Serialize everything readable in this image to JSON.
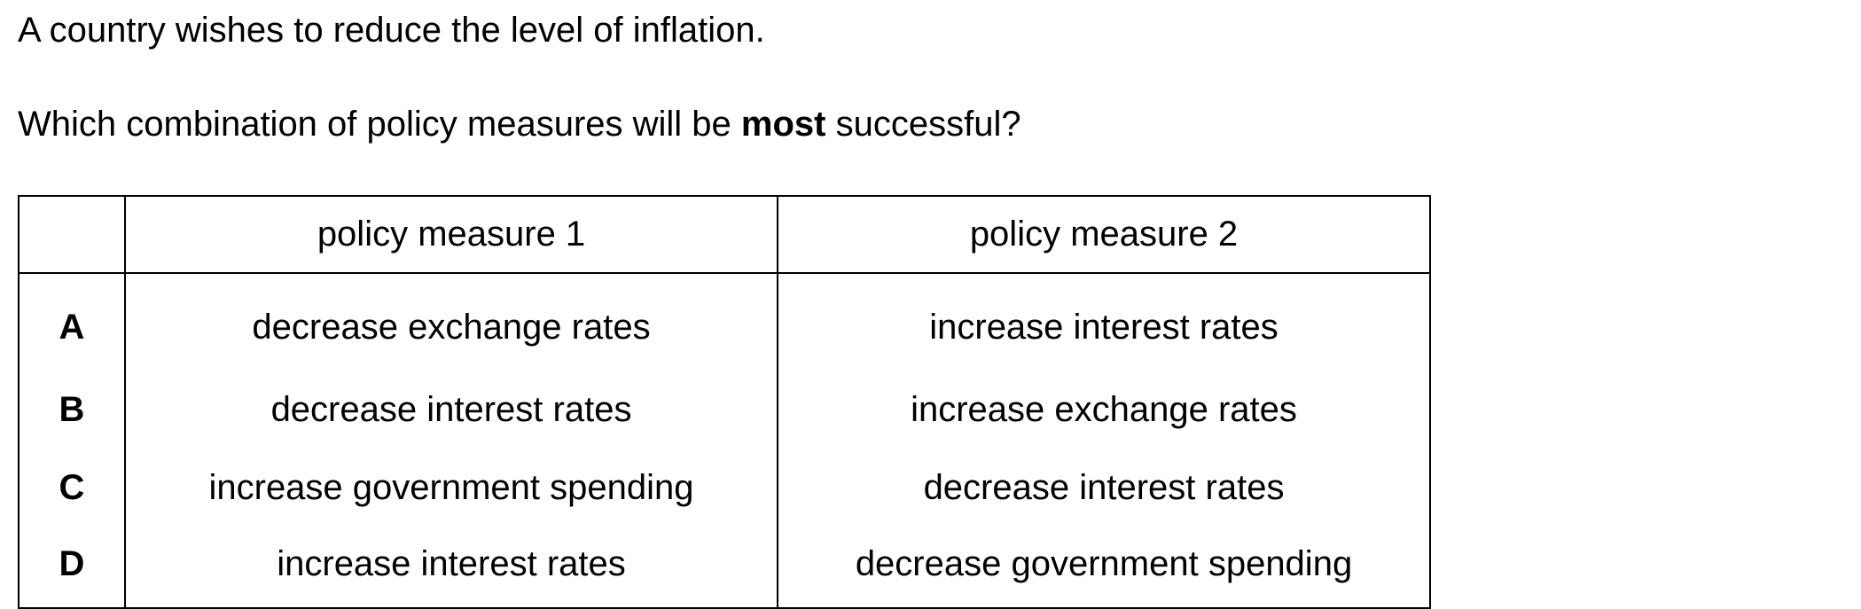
{
  "intro": "A country wishes to reduce the level of inflation.",
  "question": {
    "before": "Which combination of policy measures will be ",
    "emphasis": "most",
    "after": " successful?"
  },
  "table": {
    "headers": [
      "",
      "policy measure 1",
      "policy measure 2"
    ],
    "rows": [
      {
        "letter": "A",
        "measure1": "decrease exchange rates",
        "measure2": "increase interest rates"
      },
      {
        "letter": "B",
        "measure1": "decrease interest rates",
        "measure2": "increase exchange rates"
      },
      {
        "letter": "C",
        "measure1": "increase government spending",
        "measure2": "decrease interest rates"
      },
      {
        "letter": "D",
        "measure1": "increase interest rates",
        "measure2": "decrease government spending"
      }
    ]
  }
}
